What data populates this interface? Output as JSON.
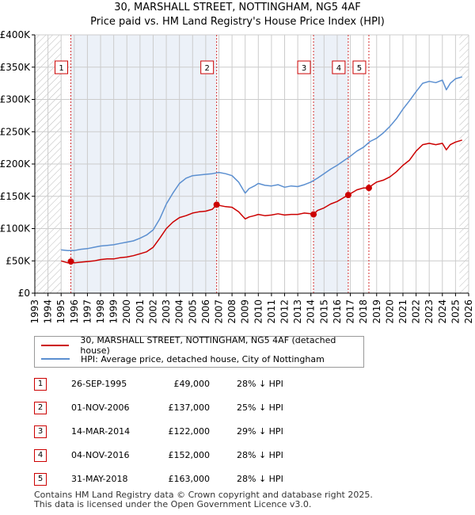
{
  "header": {
    "title_line1": "30, MARSHALL STREET, NOTTINGHAM, NG5 4AF",
    "title_line2": "Price paid vs. HM Land Registry's House Price Index (HPI)"
  },
  "colors": {
    "property": "#cc0000",
    "hpi": "#5b8fd0",
    "shade": "#dce6f3",
    "grid": "#cccccc"
  },
  "chart_data": {
    "type": "line",
    "title": "30, MARSHALL STREET, NOTTINGHAM, NG5 4AF — Price paid vs. HM Land Registry's House Price Index (HPI)",
    "xlabel": "",
    "ylabel": "",
    "xlim": [
      1993,
      2026
    ],
    "ylim": [
      0,
      400000
    ],
    "grid": true,
    "y_ticks": [
      0,
      50000,
      100000,
      150000,
      200000,
      250000,
      300000,
      350000,
      400000
    ],
    "y_tick_labels": [
      "£0",
      "£50K",
      "£100K",
      "£150K",
      "£200K",
      "£250K",
      "£300K",
      "£350K",
      "£400K"
    ],
    "x_ticks": [
      1993,
      1994,
      1995,
      1996,
      1997,
      1998,
      1999,
      2000,
      2001,
      2002,
      2003,
      2004,
      2005,
      2006,
      2007,
      2008,
      2009,
      2010,
      2011,
      2012,
      2013,
      2014,
      2015,
      2016,
      2017,
      2018,
      2019,
      2020,
      2021,
      2022,
      2023,
      2024,
      2025,
      2026
    ],
    "x_tick_labels": [
      "1993",
      "1994",
      "1995",
      "1996",
      "1997",
      "1998",
      "1999",
      "2000",
      "2001",
      "2002",
      "2003",
      "2004",
      "2005",
      "2006",
      "2007",
      "2008",
      "2009",
      "2010",
      "2011",
      "2012",
      "2013",
      "2014",
      "2015",
      "2016",
      "2017",
      "2018",
      "2019",
      "2020",
      "2021",
      "2022",
      "2023",
      "2024",
      "2025",
      "2026"
    ],
    "hatched_ranges": [
      [
        1993,
        1995.0
      ],
      [
        2025.3,
        2026
      ]
    ],
    "series": [
      {
        "name": "30, MARSHALL STREET, NOTTINGHAM, NG5 4AF (detached house)",
        "color": "#cc0000",
        "x": [
          1995.0,
          1995.5,
          1995.74,
          1996.0,
          1996.5,
          1997,
          1997.5,
          1998,
          1998.5,
          1999,
          1999.5,
          2000,
          2000.5,
          2001,
          2001.5,
          2002,
          2002.5,
          2003,
          2003.5,
          2004,
          2004.5,
          2005,
          2005.5,
          2006,
          2006.5,
          2006.83,
          2007,
          2007.5,
          2008,
          2008.5,
          2009,
          2009.3,
          2009.7,
          2010,
          2010.5,
          2011,
          2011.5,
          2012,
          2012.5,
          2013,
          2013.5,
          2014.0,
          2014.2,
          2014.5,
          2015,
          2015.5,
          2016,
          2016.5,
          2016.84,
          2017,
          2017.5,
          2018,
          2018.41,
          2018.7,
          2019,
          2019.5,
          2020,
          2020.5,
          2021,
          2021.5,
          2022,
          2022.5,
          2023,
          2023.5,
          2024,
          2024.3,
          2024.6,
          2025,
          2025.5
        ],
        "values": [
          50000,
          47000,
          49000,
          47000,
          48000,
          49000,
          50000,
          52000,
          53000,
          53000,
          55000,
          56000,
          58000,
          61000,
          64000,
          71000,
          85000,
          100000,
          110000,
          117000,
          120000,
          124000,
          126000,
          127000,
          130000,
          137000,
          136000,
          134000,
          133000,
          126000,
          115000,
          118000,
          120000,
          122000,
          120000,
          121000,
          123000,
          121000,
          122000,
          122000,
          124000,
          123000,
          122000,
          128000,
          132000,
          138000,
          142000,
          148000,
          152000,
          154000,
          160000,
          163000,
          163000,
          168000,
          172000,
          175000,
          180000,
          188000,
          198000,
          206000,
          220000,
          230000,
          232000,
          230000,
          232000,
          222000,
          230000,
          234000,
          237000
        ]
      },
      {
        "name": "HPI: Average price, detached house, City of Nottingham",
        "color": "#5b8fd0",
        "x": [
          1995.0,
          1995.5,
          1996,
          1996.5,
          1997,
          1997.5,
          1998,
          1998.5,
          1999,
          1999.5,
          2000,
          2000.5,
          2001,
          2001.5,
          2002,
          2002.5,
          2003,
          2003.5,
          2004,
          2004.5,
          2005,
          2005.5,
          2006,
          2006.5,
          2007,
          2007.5,
          2008,
          2008.5,
          2009,
          2009.3,
          2009.7,
          2010,
          2010.5,
          2011,
          2011.5,
          2012,
          2012.5,
          2013,
          2013.5,
          2014,
          2014.5,
          2015,
          2015.5,
          2016,
          2016.5,
          2017,
          2017.5,
          2018,
          2018.5,
          2019,
          2019.5,
          2020,
          2020.5,
          2021,
          2021.5,
          2022,
          2022.5,
          2023,
          2023.5,
          2024,
          2024.3,
          2024.6,
          2025,
          2025.5
        ],
        "values": [
          67000,
          66000,
          66000,
          68000,
          69000,
          71000,
          73000,
          74000,
          75000,
          77000,
          79000,
          81000,
          85000,
          90000,
          98000,
          115000,
          138000,
          155000,
          170000,
          178000,
          182000,
          183000,
          184000,
          185000,
          187000,
          185000,
          182000,
          172000,
          155000,
          162000,
          166000,
          170000,
          167000,
          166000,
          168000,
          164000,
          166000,
          165000,
          168000,
          172000,
          178000,
          185000,
          192000,
          198000,
          205000,
          212000,
          220000,
          226000,
          235000,
          240000,
          248000,
          258000,
          270000,
          285000,
          298000,
          312000,
          325000,
          328000,
          326000,
          330000,
          315000,
          325000,
          332000,
          335000
        ]
      }
    ],
    "annotations": [
      {
        "label": "1",
        "x": 1995.74,
        "price": 49000
      },
      {
        "label": "2",
        "x": 2006.83,
        "price": 137000
      },
      {
        "label": "3",
        "x": 2014.2,
        "price": 122000
      },
      {
        "label": "4",
        "x": 2016.84,
        "price": 152000
      },
      {
        "label": "5",
        "x": 2018.41,
        "price": 163000
      }
    ]
  },
  "legend": {
    "property_label": "30, MARSHALL STREET, NOTTINGHAM, NG5 4AF (detached house)",
    "hpi_label": "HPI: Average price, detached house, City of Nottingham"
  },
  "sales": [
    {
      "num": "1",
      "date": "26-SEP-1995",
      "price": "£49,000",
      "hpi": "28% ↓ HPI"
    },
    {
      "num": "2",
      "date": "01-NOV-2006",
      "price": "£137,000",
      "hpi": "25% ↓ HPI"
    },
    {
      "num": "3",
      "date": "14-MAR-2014",
      "price": "£122,000",
      "hpi": "29% ↓ HPI"
    },
    {
      "num": "4",
      "date": "04-NOV-2016",
      "price": "£152,000",
      "hpi": "28% ↓ HPI"
    },
    {
      "num": "5",
      "date": "31-MAY-2018",
      "price": "£163,000",
      "hpi": "28% ↓ HPI"
    }
  ],
  "footer": {
    "line1": "Contains HM Land Registry data © Crown copyright and database right 2025.",
    "line2": "This data is licensed under the Open Government Licence v3.0."
  }
}
